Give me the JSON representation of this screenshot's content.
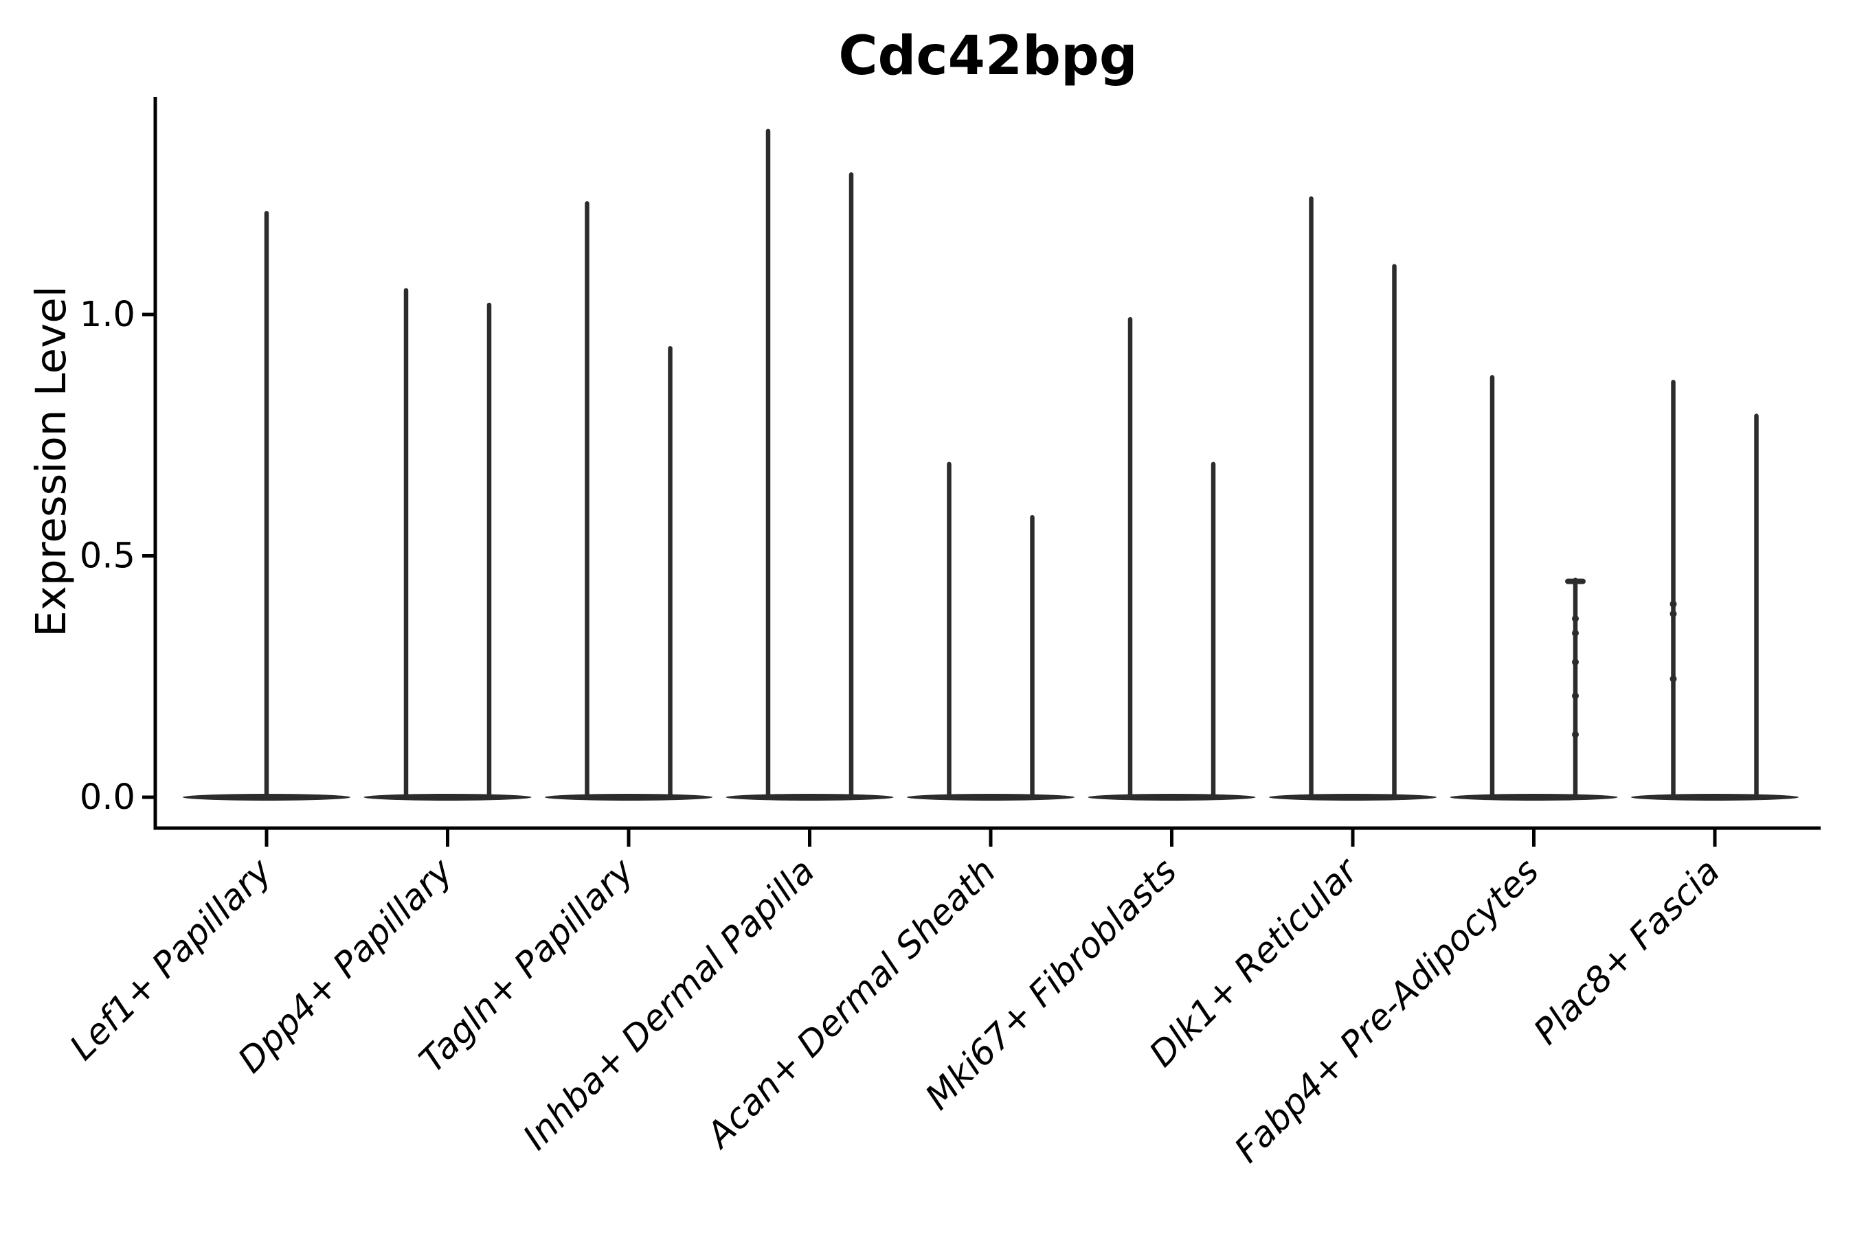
{
  "chart_data": {
    "type": "violin",
    "title": "Cdc42bpg",
    "xlabel": "",
    "ylabel": "Expression Level",
    "ylim": [
      -0.06,
      1.45
    ],
    "grid": false,
    "legend": null,
    "yticks": [
      {
        "value": 0.0,
        "label": "0.0"
      },
      {
        "value": 0.5,
        "label": "0.5"
      },
      {
        "value": 1.0,
        "label": "1.0"
      }
    ],
    "categories": [
      "Lef1+ Papillary",
      "Dpp4+ Papillary",
      "Tagln+ Papillary",
      "Inhba+ Dermal Papilla",
      "Acan+ Dermal Sheath",
      "Mki67+ Fibroblasts",
      "Dlk1+ Reticular",
      "Fabp4+ Pre-Adipocytes",
      "Plac8+ Fascia"
    ],
    "violins": [
      {
        "category": "Lef1+ Papillary",
        "baseline": 0.0,
        "maxima": [
          1.21
        ],
        "knots": [
          []
        ],
        "caps": [
          false
        ]
      },
      {
        "category": "Dpp4+ Papillary",
        "baseline": 0.0,
        "maxima": [
          1.05,
          1.02
        ],
        "knots": [
          [],
          []
        ],
        "caps": [
          false,
          false
        ]
      },
      {
        "category": "Tagln+ Papillary",
        "baseline": 0.0,
        "maxima": [
          1.23,
          0.93
        ],
        "knots": [
          [],
          []
        ],
        "caps": [
          false,
          false
        ]
      },
      {
        "category": "Inhba+ Dermal Papilla",
        "baseline": 0.0,
        "maxima": [
          1.38,
          1.29
        ],
        "knots": [
          [],
          []
        ],
        "caps": [
          false,
          false
        ]
      },
      {
        "category": "Acan+ Dermal Sheath",
        "baseline": 0.0,
        "maxima": [
          0.69,
          0.58
        ],
        "knots": [
          [],
          []
        ],
        "caps": [
          false,
          false
        ]
      },
      {
        "category": "Mki67+ Fibroblasts",
        "baseline": 0.0,
        "maxima": [
          0.99,
          0.69
        ],
        "knots": [
          [],
          []
        ],
        "caps": [
          false,
          false
        ]
      },
      {
        "category": "Dlk1+ Reticular",
        "baseline": 0.0,
        "maxima": [
          1.24,
          1.1
        ],
        "knots": [
          [],
          []
        ],
        "caps": [
          false,
          false
        ]
      },
      {
        "category": "Fabp4+ Pre-Adipocytes",
        "baseline": 0.0,
        "maxima": [
          0.87,
          0.45
        ],
        "knots": [
          [],
          [
            0.13,
            0.21,
            0.28,
            0.34,
            0.37
          ]
        ],
        "caps": [
          false,
          true
        ]
      },
      {
        "category": "Plac8+ Fascia",
        "baseline": 0.0,
        "maxima": [
          0.86,
          0.79
        ],
        "knots": [
          [
            0.245,
            0.38,
            0.4
          ],
          []
        ],
        "caps": [
          false,
          false
        ]
      }
    ],
    "colors": {
      "violin": "#2c2c2c",
      "axis": "#000000",
      "text": "#000000",
      "background": "#ffffff"
    }
  }
}
